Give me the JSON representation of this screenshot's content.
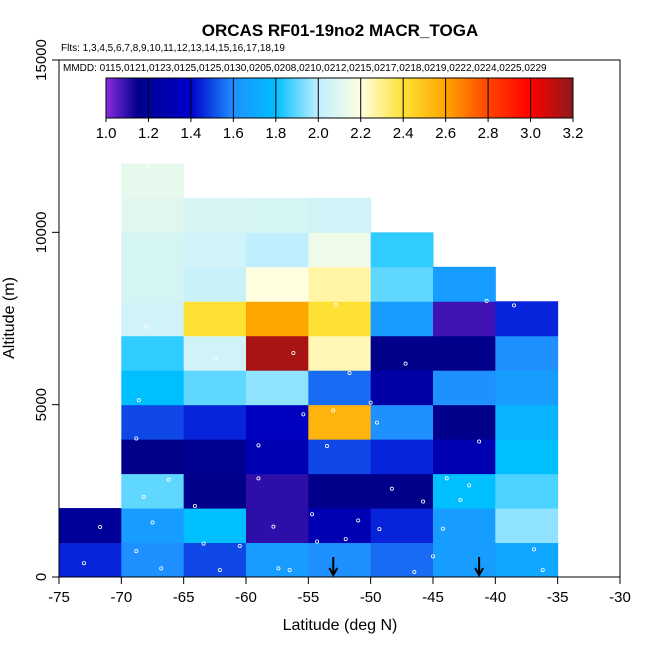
{
  "chart_data": {
    "type": "heatmap",
    "title": "ORCAS RF01-19no2 MACR_TOGA",
    "flights_note": "Flts: 1,3,4,5,6,7,8,9,10,11,12,13,14,15,16,17,18,19",
    "dates_note": "MMDD: 0115,0121,0123,0125,0125,0130,0205,0208,0210,0212,0215,0217,0218,0219,0222,0224,0225,0229",
    "xlabel": "Latitude (deg N)",
    "ylabel": "Altitude (m)",
    "xlim": [
      -75,
      -30
    ],
    "ylim": [
      0,
      15000
    ],
    "xticks": [
      "-75",
      "-70",
      "-65",
      "-60",
      "-55",
      "-50",
      "-45",
      "-40",
      "-35",
      "-30"
    ],
    "xtick_values": [
      -75,
      -70,
      -65,
      -60,
      -55,
      -50,
      -45,
      -40,
      -35,
      -30
    ],
    "yticks": [
      "0",
      "5000",
      "10000",
      "15000"
    ],
    "ytick_values": [
      0,
      5000,
      10000,
      15000
    ],
    "cell_width_deg": 5,
    "cell_height_m": 1000,
    "colorbar": {
      "range": [
        1.0,
        3.2
      ],
      "tick_labels": [
        "1.0",
        "1.2",
        "1.4",
        "1.6",
        "1.8",
        "2.0",
        "2.2",
        "2.4",
        "2.6",
        "2.8",
        "3.0",
        "3.2"
      ],
      "tick_values": [
        1.0,
        1.2,
        1.4,
        1.6,
        1.8,
        2.0,
        2.2,
        2.4,
        2.6,
        2.8,
        3.0,
        3.2
      ],
      "stops": [
        {
          "v": 1.0,
          "color": "#8a2be2"
        },
        {
          "v": 1.15,
          "color": "#00008b"
        },
        {
          "v": 1.4,
          "color": "#0000cd"
        },
        {
          "v": 1.6,
          "color": "#1e90ff"
        },
        {
          "v": 1.8,
          "color": "#00bfff"
        },
        {
          "v": 2.0,
          "color": "#bfefff"
        },
        {
          "v": 2.2,
          "color": "#ffffe0"
        },
        {
          "v": 2.4,
          "color": "#ffe135"
        },
        {
          "v": 2.6,
          "color": "#ffa500"
        },
        {
          "v": 2.8,
          "color": "#ff4500"
        },
        {
          "v": 3.0,
          "color": "#ff0000"
        },
        {
          "v": 3.2,
          "color": "#8b1a1a"
        }
      ]
    },
    "cells": [
      {
        "lat": -75,
        "alt": 0,
        "value": 1.45
      },
      {
        "lat": -75,
        "alt": 1000,
        "value": 1.2
      },
      {
        "lat": -70,
        "alt": 0,
        "value": 1.6
      },
      {
        "lat": -70,
        "alt": 1000,
        "value": 1.65
      },
      {
        "lat": -70,
        "alt": 2000,
        "value": 1.9
      },
      {
        "lat": -70,
        "alt": 3000,
        "value": 1.15
      },
      {
        "lat": -70,
        "alt": 4000,
        "value": 1.5
      },
      {
        "lat": -70,
        "alt": 5000,
        "value": 1.8
      },
      {
        "lat": -70,
        "alt": 6000,
        "value": 1.85
      },
      {
        "lat": -70,
        "alt": 7000,
        "value": 2.05
      },
      {
        "lat": -70,
        "alt": 8000,
        "value": 2.07
      },
      {
        "lat": -70,
        "alt": 9000,
        "value": 2.07
      },
      {
        "lat": -70,
        "alt": 10000,
        "value": 2.1
      },
      {
        "lat": -70,
        "alt": 11000,
        "value": 2.12
      },
      {
        "lat": -65,
        "alt": 0,
        "value": 1.5
      },
      {
        "lat": -65,
        "alt": 1000,
        "value": 1.8
      },
      {
        "lat": -65,
        "alt": 2000,
        "value": 1.15
      },
      {
        "lat": -65,
        "alt": 3000,
        "value": 1.17
      },
      {
        "lat": -65,
        "alt": 4000,
        "value": 1.45
      },
      {
        "lat": -65,
        "alt": 5000,
        "value": 1.9
      },
      {
        "lat": -65,
        "alt": 6000,
        "value": 2.05
      },
      {
        "lat": -65,
        "alt": 7000,
        "value": 2.4
      },
      {
        "lat": -65,
        "alt": 8000,
        "value": 2.03
      },
      {
        "lat": -65,
        "alt": 9000,
        "value": 2.05
      },
      {
        "lat": -65,
        "alt": 10000,
        "value": 2.08
      },
      {
        "lat": -60,
        "alt": 0,
        "value": 1.65
      },
      {
        "lat": -60,
        "alt": 1000,
        "value": 1.1
      },
      {
        "lat": -60,
        "alt": 2000,
        "value": 1.1
      },
      {
        "lat": -60,
        "alt": 3000,
        "value": 1.3
      },
      {
        "lat": -60,
        "alt": 4000,
        "value": 1.35
      },
      {
        "lat": -60,
        "alt": 5000,
        "value": 1.95
      },
      {
        "lat": -60,
        "alt": 6000,
        "value": 3.15
      },
      {
        "lat": -60,
        "alt": 7000,
        "value": 2.6
      },
      {
        "lat": -60,
        "alt": 8000,
        "value": 2.2
      },
      {
        "lat": -60,
        "alt": 9000,
        "value": 2.0
      },
      {
        "lat": -60,
        "alt": 10000,
        "value": 2.07
      },
      {
        "lat": -55,
        "alt": 0,
        "value": 1.6
      },
      {
        "lat": -55,
        "alt": 1000,
        "value": 1.3
      },
      {
        "lat": -55,
        "alt": 2000,
        "value": 1.15
      },
      {
        "lat": -55,
        "alt": 3000,
        "value": 1.5
      },
      {
        "lat": -55,
        "alt": 4000,
        "value": 2.55
      },
      {
        "lat": -55,
        "alt": 5000,
        "value": 1.55
      },
      {
        "lat": -55,
        "alt": 6000,
        "value": 2.25
      },
      {
        "lat": -55,
        "alt": 7000,
        "value": 2.4
      },
      {
        "lat": -55,
        "alt": 8000,
        "value": 2.27
      },
      {
        "lat": -55,
        "alt": 9000,
        "value": 2.15
      },
      {
        "lat": -55,
        "alt": 10000,
        "value": 2.05
      },
      {
        "lat": -50,
        "alt": 0,
        "value": 1.55
      },
      {
        "lat": -50,
        "alt": 1000,
        "value": 1.45
      },
      {
        "lat": -50,
        "alt": 2000,
        "value": 1.15
      },
      {
        "lat": -50,
        "alt": 3000,
        "value": 1.45
      },
      {
        "lat": -50,
        "alt": 4000,
        "value": 1.6
      },
      {
        "lat": -50,
        "alt": 5000,
        "value": 1.25
      },
      {
        "lat": -50,
        "alt": 6000,
        "value": 1.15
      },
      {
        "lat": -50,
        "alt": 7000,
        "value": 1.65
      },
      {
        "lat": -50,
        "alt": 8000,
        "value": 1.9
      },
      {
        "lat": -50,
        "alt": 9000,
        "value": 1.85
      },
      {
        "lat": -45,
        "alt": 0,
        "value": 1.65
      },
      {
        "lat": -45,
        "alt": 1000,
        "value": 1.65
      },
      {
        "lat": -45,
        "alt": 2000,
        "value": 1.8
      },
      {
        "lat": -45,
        "alt": 3000,
        "value": 1.3
      },
      {
        "lat": -45,
        "alt": 4000,
        "value": 1.15
      },
      {
        "lat": -45,
        "alt": 5000,
        "value": 1.6
      },
      {
        "lat": -45,
        "alt": 6000,
        "value": 1.15
      },
      {
        "lat": -45,
        "alt": 7000,
        "value": 1.08
      },
      {
        "lat": -45,
        "alt": 8000,
        "value": 1.65
      },
      {
        "lat": -40,
        "alt": 0,
        "value": 1.7
      },
      {
        "lat": -40,
        "alt": 1000,
        "value": 1.95
      },
      {
        "lat": -40,
        "alt": 2000,
        "value": 1.88
      },
      {
        "lat": -40,
        "alt": 3000,
        "value": 1.8
      },
      {
        "lat": -40,
        "alt": 4000,
        "value": 1.75
      },
      {
        "lat": -40,
        "alt": 5000,
        "value": 1.65
      },
      {
        "lat": -40,
        "alt": 6000,
        "value": 1.6
      },
      {
        "lat": -40,
        "alt": 7000,
        "value": 1.45
      }
    ],
    "arrows": [
      {
        "lat": -53.0,
        "label": "flight marker arrow"
      },
      {
        "lat": -41.3,
        "label": "flight marker arrow"
      }
    ],
    "sample_points": [
      {
        "lat": -73.0,
        "alt": 400
      },
      {
        "lat": -71.7,
        "alt": 1450
      },
      {
        "lat": -68.2,
        "alt": 2330
      },
      {
        "lat": -67.5,
        "alt": 1580
      },
      {
        "lat": -68.8,
        "alt": 750
      },
      {
        "lat": -66.8,
        "alt": 250
      },
      {
        "lat": -67.9,
        "alt": 11920
      },
      {
        "lat": -68.0,
        "alt": 7260
      },
      {
        "lat": -68.6,
        "alt": 5130
      },
      {
        "lat": -66.2,
        "alt": 2820
      },
      {
        "lat": -68.8,
        "alt": 4020
      },
      {
        "lat": -64.1,
        "alt": 2060
      },
      {
        "lat": -63.4,
        "alt": 970
      },
      {
        "lat": -62.5,
        "alt": 6340
      },
      {
        "lat": -59.0,
        "alt": 3820
      },
      {
        "lat": -59.0,
        "alt": 2860
      },
      {
        "lat": -57.8,
        "alt": 1460
      },
      {
        "lat": -57.4,
        "alt": 250
      },
      {
        "lat": -56.2,
        "alt": 6500
      },
      {
        "lat": -55.4,
        "alt": 4720
      },
      {
        "lat": -54.7,
        "alt": 1820
      },
      {
        "lat": -54.3,
        "alt": 1030
      },
      {
        "lat": -53.5,
        "alt": 3800
      },
      {
        "lat": -53.0,
        "alt": 4830
      },
      {
        "lat": -52.8,
        "alt": 7900
      },
      {
        "lat": -51.7,
        "alt": 5920
      },
      {
        "lat": -50.0,
        "alt": 5060
      },
      {
        "lat": -49.5,
        "alt": 4480
      },
      {
        "lat": -49.3,
        "alt": 1390
      },
      {
        "lat": -48.3,
        "alt": 2560
      },
      {
        "lat": -47.2,
        "alt": 6190
      },
      {
        "lat": -45.8,
        "alt": 2190
      },
      {
        "lat": -45.0,
        "alt": 600
      },
      {
        "lat": -43.9,
        "alt": 2860
      },
      {
        "lat": -42.8,
        "alt": 2230
      },
      {
        "lat": -42.1,
        "alt": 2660
      },
      {
        "lat": -41.3,
        "alt": 3930
      },
      {
        "lat": -40.7,
        "alt": 8010
      },
      {
        "lat": -38.5,
        "alt": 7880
      },
      {
        "lat": -36.9,
        "alt": 800
      },
      {
        "lat": -36.2,
        "alt": 200
      },
      {
        "lat": -60.5,
        "alt": 900
      },
      {
        "lat": -62.1,
        "alt": 200
      },
      {
        "lat": -51.0,
        "alt": 1640
      },
      {
        "lat": -46.5,
        "alt": 150
      },
      {
        "lat": -44.2,
        "alt": 1400
      },
      {
        "lat": -56.5,
        "alt": 200
      },
      {
        "lat": -52.0,
        "alt": 1100
      }
    ]
  }
}
